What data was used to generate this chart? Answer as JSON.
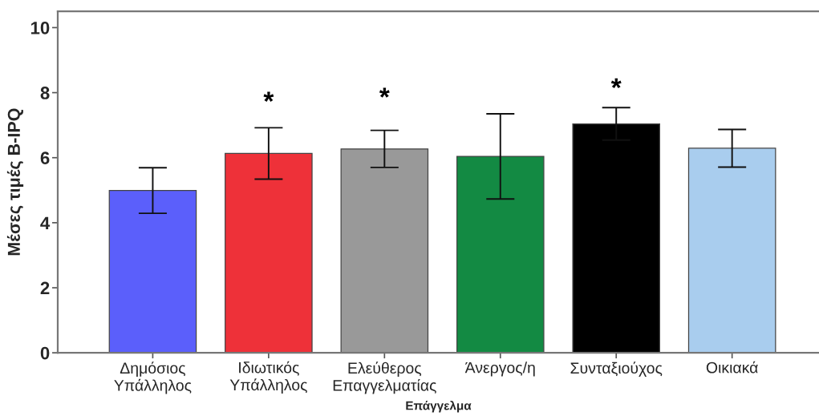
{
  "chart_data": {
    "type": "bar",
    "xlabel": "Επάγγελμα",
    "ylabel": "Μέσες τιμές B-IPQ",
    "categories": [
      "Δημόσιος\nΥπάλληλος",
      "Ιδιωτικός\nΥπάλληλος",
      "Ελεύθερος\nΕπαγγελματίας",
      "Άνεργος/η",
      "Συνταξιούχος",
      "Οικιακά"
    ],
    "values": [
      4.99,
      6.13,
      6.27,
      6.04,
      7.04,
      6.29
    ],
    "errors": [
      0.7,
      0.79,
      0.57,
      1.31,
      0.5,
      0.58
    ],
    "colors": [
      "#5b5ffb",
      "#ee3139",
      "#999999",
      "#138a43",
      "#000000",
      "#a9cdee"
    ],
    "ylim": [
      0,
      10.5
    ],
    "yticks": [
      0,
      2,
      4,
      6,
      8,
      10
    ],
    "annotations": [
      "*",
      "*",
      "*"
    ]
  }
}
